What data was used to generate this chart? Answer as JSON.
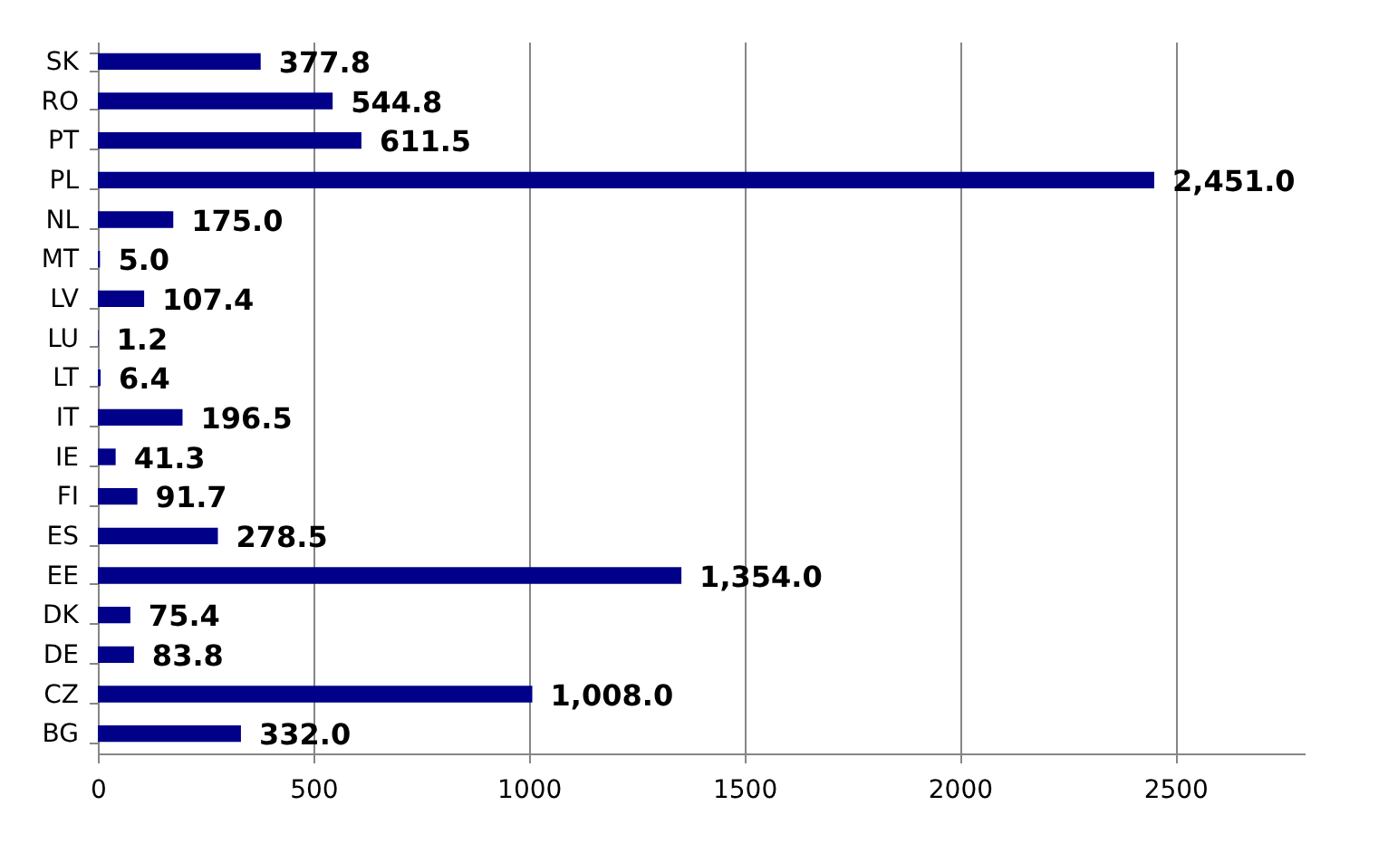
{
  "chart_data": {
    "type": "bar",
    "orientation": "horizontal",
    "categories": [
      "SK",
      "RO",
      "PT",
      "PL",
      "NL",
      "MT",
      "LV",
      "LU",
      "LT",
      "IT",
      "IE",
      "FI",
      "ES",
      "EE",
      "DK",
      "DE",
      "CZ",
      "BG"
    ],
    "values": [
      377.8,
      544.8,
      611.5,
      2451.0,
      175.0,
      5.0,
      107.4,
      1.2,
      6.4,
      196.5,
      41.3,
      91.7,
      278.5,
      1354.0,
      75.4,
      83.8,
      1008.0,
      332.0
    ],
    "value_labels": [
      "377.8",
      "544.8",
      "611.5",
      "2,451.0",
      "175.0",
      "5.0",
      "107.4",
      "1.2",
      "6.4",
      "196.5",
      "41.3",
      "91.7",
      "278.5",
      "1,354.0",
      "75.4",
      "83.8",
      "1,008.0",
      "332.0"
    ],
    "color": "#000088",
    "xlim": [
      0,
      2800
    ],
    "xticks": [
      0,
      500,
      1000,
      1500,
      2000,
      2500
    ],
    "grid": "x"
  }
}
